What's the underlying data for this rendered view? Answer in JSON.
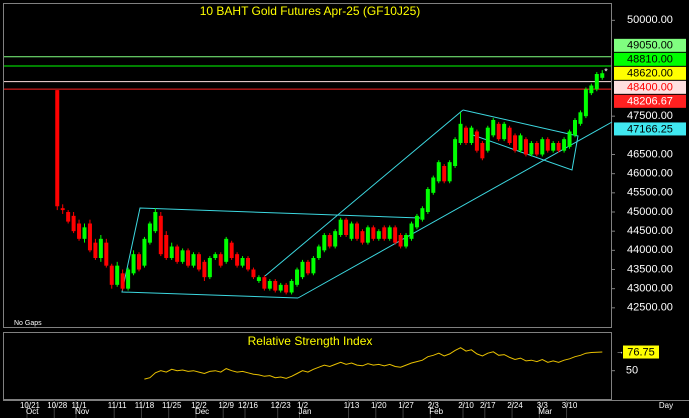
{
  "chart_data": {
    "type": "candlestick",
    "title": "10  BAHT  Gold Futures Apr-25  (GF10J25)",
    "note": "No Gaps",
    "x_unit_label": "Day",
    "ylim": [
      42000,
      50400
    ],
    "yticks": [
      {
        "value": 50000,
        "label": "50000.00"
      },
      {
        "value": 47500,
        "label": "47500.00"
      },
      {
        "value": 46500,
        "label": "46500.00"
      },
      {
        "value": 46000,
        "label": "46000.00"
      },
      {
        "value": 45500,
        "label": "45500.00"
      },
      {
        "value": 45000,
        "label": "45000.00"
      },
      {
        "value": 44500,
        "label": "44500.00"
      },
      {
        "value": 44000,
        "label": "44000.00"
      },
      {
        "value": 43500,
        "label": "43500.00"
      },
      {
        "value": 43000,
        "label": "43000.00"
      },
      {
        "value": 42500,
        "label": "42500.00"
      }
    ],
    "up_color": "#00ff00",
    "down_color": "#ff0000",
    "categories": [
      "10/21",
      null,
      null,
      null,
      null,
      "10/28",
      null,
      null,
      null,
      "11/1",
      null,
      null,
      null,
      null,
      null,
      null,
      "11/11",
      null,
      null,
      null,
      null,
      "11/18",
      null,
      null,
      null,
      null,
      "11/25",
      null,
      null,
      null,
      null,
      "12/2",
      null,
      null,
      null,
      null,
      "12/9",
      null,
      null,
      null,
      "12/16",
      null,
      null,
      null,
      null,
      null,
      "12/23",
      null,
      null,
      null,
      "1/2",
      null,
      null,
      null,
      null,
      null,
      null,
      null,
      null,
      "1/13",
      null,
      null,
      null,
      null,
      "1/20",
      null,
      null,
      null,
      null,
      "1/27",
      null,
      null,
      null,
      null,
      "2/3",
      null,
      null,
      null,
      null,
      null,
      "2/10",
      null,
      null,
      null,
      "2/17",
      null,
      null,
      null,
      null,
      "2/24",
      null,
      null,
      null,
      null,
      "3/3",
      null,
      null,
      null,
      null,
      "3/10",
      null,
      null,
      null,
      null,
      null,
      null
    ],
    "months": [
      "Oct",
      null,
      null,
      null,
      null,
      null,
      null,
      null,
      null,
      "Nov",
      null,
      null,
      null,
      null,
      null,
      null,
      null,
      null,
      null,
      null,
      null,
      null,
      null,
      null,
      null,
      null,
      null,
      null,
      null,
      null,
      null,
      "Dec",
      null,
      null,
      null,
      null,
      null,
      null,
      null,
      null,
      null,
      null,
      null,
      null,
      null,
      null,
      null,
      null,
      null,
      null,
      "Jan",
      null,
      null,
      null,
      null,
      null,
      null,
      null,
      null,
      null,
      null,
      null,
      null,
      null,
      null,
      null,
      null,
      null,
      null,
      null,
      null,
      null,
      null,
      null,
      "Feb",
      null,
      null,
      null,
      null,
      null,
      null,
      null,
      null,
      null,
      null,
      null,
      null,
      null,
      null,
      null,
      null,
      null,
      null,
      null,
      "Mar",
      null,
      null,
      null,
      null,
      null,
      null,
      null,
      null,
      null,
      null,
      null
    ],
    "ohlc": [
      null,
      null,
      null,
      null,
      null,
      [
        48180,
        48180,
        45050,
        45150
      ],
      [
        45100,
        45200,
        44950,
        45050
      ],
      [
        45000,
        45050,
        44700,
        44750
      ],
      [
        44900,
        45000,
        44450,
        44500
      ],
      [
        44700,
        44800,
        44250,
        44300
      ],
      [
        44300,
        44700,
        44200,
        44600
      ],
      [
        44700,
        44800,
        43950,
        44000
      ],
      [
        44200,
        44300,
        43750,
        43800
      ],
      [
        43800,
        44400,
        43700,
        44300
      ],
      [
        44200,
        44300,
        43550,
        43600
      ],
      [
        43600,
        43650,
        43000,
        43100
      ],
      [
        43100,
        43700,
        43050,
        43600
      ],
      [
        43400,
        43500,
        42950,
        43000
      ],
      [
        43000,
        43550,
        42950,
        43500
      ],
      [
        43400,
        44000,
        43350,
        43900
      ],
      [
        43900,
        43950,
        43450,
        43500
      ],
      [
        43600,
        44350,
        43550,
        44300
      ],
      [
        44200,
        44750,
        44150,
        44700
      ],
      [
        44500,
        45100,
        44450,
        45000
      ],
      [
        44900,
        45000,
        43850,
        43900
      ],
      [
        44400,
        44500,
        43750,
        43800
      ],
      [
        43800,
        44200,
        43750,
        44100
      ],
      [
        44100,
        44150,
        43650,
        43700
      ],
      [
        43700,
        44050,
        43650,
        44000
      ],
      [
        44000,
        44050,
        43550,
        43600
      ],
      [
        43600,
        43950,
        43550,
        43900
      ],
      [
        43900,
        43950,
        43450,
        43500
      ],
      [
        43700,
        43750,
        43200,
        43300
      ],
      [
        43300,
        43850,
        43250,
        43800
      ],
      [
        43800,
        43950,
        43750,
        43900
      ],
      [
        43900,
        43950,
        43550,
        43600
      ],
      [
        43700,
        44350,
        43650,
        44300
      ],
      [
        44200,
        44250,
        43750,
        43800
      ],
      [
        43900,
        43950,
        43550,
        43600
      ],
      [
        43600,
        43850,
        43550,
        43800
      ],
      [
        43800,
        43850,
        43450,
        43500
      ],
      [
        43500,
        43550,
        43250,
        43300
      ],
      [
        43200,
        43350,
        43150,
        43300
      ],
      [
        43300,
        43350,
        42950,
        43000
      ],
      [
        43000,
        43250,
        42950,
        43200
      ],
      [
        43200,
        43250,
        42900,
        42950
      ],
      [
        42950,
        43150,
        42900,
        43100
      ],
      [
        43100,
        43150,
        42850,
        42900
      ],
      [
        42900,
        43250,
        42850,
        43200
      ],
      [
        43100,
        43550,
        43050,
        43500
      ],
      [
        43300,
        43750,
        43250,
        43700
      ],
      [
        43700,
        43750,
        43350,
        43400
      ],
      [
        43400,
        43850,
        43350,
        43800
      ],
      [
        43800,
        44150,
        43750,
        44100
      ],
      [
        44000,
        44450,
        43950,
        44400
      ],
      [
        44400,
        44450,
        44050,
        44100
      ],
      [
        44100,
        44550,
        44050,
        44500
      ],
      [
        44400,
        44850,
        44350,
        44800
      ],
      [
        44800,
        44850,
        44350,
        44400
      ],
      [
        44300,
        44750,
        44250,
        44700
      ],
      [
        44700,
        44750,
        44250,
        44300
      ],
      [
        44500,
        44550,
        44150,
        44200
      ],
      [
        44200,
        44650,
        44150,
        44600
      ],
      [
        44600,
        44650,
        44250,
        44300
      ],
      [
        44300,
        44550,
        44250,
        44500
      ],
      [
        44600,
        44650,
        44250,
        44300
      ],
      [
        44300,
        44650,
        44250,
        44600
      ],
      [
        44600,
        44650,
        44150,
        44200
      ],
      [
        44400,
        44450,
        44050,
        44100
      ],
      [
        44100,
        44450,
        44050,
        44400
      ],
      [
        44300,
        44750,
        44250,
        44700
      ],
      [
        44600,
        44950,
        44550,
        44900
      ],
      [
        44800,
        45150,
        44750,
        45100
      ],
      [
        45000,
        45650,
        44950,
        45600
      ],
      [
        45500,
        45950,
        45450,
        45900
      ],
      [
        45800,
        46350,
        45750,
        46300
      ],
      [
        46200,
        46250,
        45750,
        45800
      ],
      [
        45800,
        46350,
        45750,
        46300
      ],
      [
        46200,
        46950,
        46150,
        46900
      ],
      [
        46800,
        47600,
        46750,
        47300
      ],
      [
        47200,
        47250,
        46750,
        46800
      ],
      [
        46800,
        47250,
        46750,
        47200
      ],
      [
        47100,
        47150,
        46550,
        46600
      ],
      [
        46800,
        46850,
        46350,
        46400
      ],
      [
        46600,
        47250,
        46550,
        47200
      ],
      [
        47000,
        47450,
        46950,
        47400
      ],
      [
        47300,
        47350,
        46850,
        46900
      ],
      [
        46900,
        47350,
        46850,
        47300
      ],
      [
        47200,
        47250,
        46750,
        46800
      ],
      [
        47000,
        47050,
        46550,
        46600
      ],
      [
        46600,
        47050,
        46550,
        47000
      ],
      [
        46900,
        46950,
        46450,
        46500
      ],
      [
        46500,
        46850,
        46450,
        46800
      ],
      [
        46800,
        46850,
        46450,
        46500
      ],
      [
        46500,
        46950,
        46450,
        46900
      ],
      [
        46900,
        46950,
        46550,
        46600
      ],
      [
        46600,
        46850,
        46550,
        46800
      ],
      [
        46800,
        46850,
        46550,
        46600
      ],
      [
        46600,
        46950,
        46550,
        46900
      ],
      [
        46700,
        47150,
        46650,
        47100
      ],
      [
        47000,
        47450,
        46950,
        47400
      ],
      [
        47300,
        47650,
        47250,
        47600
      ],
      [
        47500,
        48250,
        47450,
        48200
      ],
      [
        48100,
        48350,
        48050,
        48300
      ],
      [
        48200,
        48650,
        48150,
        48600
      ],
      [
        48500,
        48700,
        48450,
        48620
      ]
    ],
    "price_labels": [
      {
        "value": 49050,
        "label": "49050.00",
        "color": "#80ff80",
        "text_color": "#000000",
        "line": true
      },
      {
        "value": 48810,
        "label": "48810.00",
        "color": "#00ff00",
        "text_color": "#000000",
        "line": true
      },
      {
        "value": 48620,
        "label": "48620.00",
        "color": "#ffff00",
        "text_color": "#000000",
        "line": false
      },
      {
        "value": 48400,
        "label": "48400.00",
        "color": "#ffe0e0",
        "text_color": "#ff0000",
        "line": true
      },
      {
        "value": 48206.67,
        "label": "48206.67",
        "color": "#ff2020",
        "text_color": "#ffffff",
        "line": true
      },
      {
        "value": 47166.25,
        "label": "47166.25",
        "color": "#40e8f0",
        "text_color": "#000000",
        "line": false
      }
    ],
    "rsi": {
      "title": "Relative Strength Index",
      "color": "#e8c000",
      "label_color": "#ffff00",
      "ylim": [
        8,
        104
      ],
      "yticks": [
        50
      ],
      "value_label": "76.75",
      "values": [
        null,
        null,
        null,
        null,
        null,
        null,
        null,
        null,
        null,
        null,
        null,
        null,
        null,
        null,
        null,
        null,
        null,
        null,
        null,
        null,
        null,
        38,
        40,
        47,
        50,
        48,
        52,
        50,
        51,
        49,
        50,
        48,
        46,
        49,
        50,
        48,
        53,
        50,
        48,
        49,
        47,
        45,
        44,
        42,
        43,
        40,
        41,
        39,
        42,
        46,
        50,
        48,
        52,
        55,
        58,
        56,
        59,
        62,
        59,
        61,
        58,
        57,
        60,
        58,
        59,
        57,
        59,
        56,
        55,
        58,
        61,
        63,
        65,
        70,
        72,
        75,
        71,
        74,
        79,
        83,
        78,
        80,
        74,
        71,
        75,
        77,
        72,
        73,
        69,
        66,
        68,
        64,
        65,
        63,
        66,
        62,
        64,
        62,
        65,
        67,
        70,
        72,
        75,
        76,
        76.5,
        76.75
      ]
    }
  }
}
